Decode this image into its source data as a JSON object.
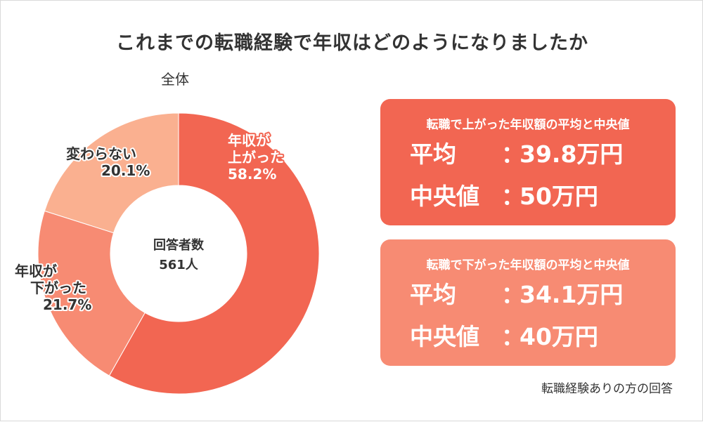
{
  "title": "これまでの転職経験で年収はどのようになりましたか",
  "subtitle": "全体",
  "colors": {
    "up": "#f26652",
    "down": "#f78b73",
    "same": "#fab090",
    "card_up": "#f26652",
    "card_down": "#f78b73"
  },
  "chart_data": {
    "type": "pie",
    "title": "全体",
    "center_label": [
      "回答者数",
      "561人"
    ],
    "series": [
      {
        "name": "上がった",
        "label": [
          "年収が",
          "上がった",
          "58.2%"
        ],
        "value": 58.2,
        "color": "#f26652"
      },
      {
        "name": "下がった",
        "label": [
          "年収が",
          "下がった",
          "21.7%"
        ],
        "value": 21.7,
        "color": "#f78b73"
      },
      {
        "name": "変わらない",
        "label": [
          "変わらない",
          "20.1%"
        ],
        "value": 20.1,
        "color": "#fab090"
      }
    ]
  },
  "cards": {
    "up": {
      "heading": "転職で上がった年収額の平均と中央値",
      "avg_label": "平均",
      "avg_value": "39.8万円",
      "median_label": "中央値",
      "median_value": "50万円",
      "sep": "："
    },
    "down": {
      "heading": "転職で下がった年収額の平均と中央値",
      "avg_label": "平均",
      "avg_value": "34.1万円",
      "median_label": "中央値",
      "median_value": "40万円",
      "sep": "："
    }
  },
  "footnote": "転職経験ありの方の回答"
}
